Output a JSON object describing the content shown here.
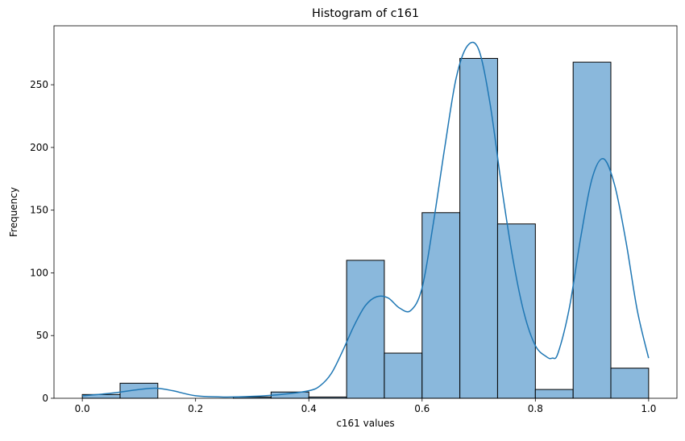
{
  "chart_data": {
    "type": "bar",
    "title": "Histogram of c161",
    "xlabel": "c161 values",
    "ylabel": "Frequency",
    "xlim": [
      -0.05,
      1.05
    ],
    "ylim": [
      0,
      297
    ],
    "x_ticks": [
      0.0,
      0.2,
      0.4,
      0.6,
      0.8,
      1.0
    ],
    "x_tick_labels": [
      "0.0",
      "0.2",
      "0.4",
      "0.6",
      "0.8",
      "1.0"
    ],
    "y_ticks": [
      0,
      50,
      100,
      150,
      200,
      250
    ],
    "y_tick_labels": [
      "0",
      "50",
      "100",
      "150",
      "200",
      "250"
    ],
    "bins": [
      {
        "start": 0.0,
        "end": 0.0667,
        "count": 3
      },
      {
        "start": 0.0667,
        "end": 0.1333,
        "count": 12
      },
      {
        "start": 0.1333,
        "end": 0.2,
        "count": 0
      },
      {
        "start": 0.2,
        "end": 0.2667,
        "count": 0
      },
      {
        "start": 0.2667,
        "end": 0.3333,
        "count": 1
      },
      {
        "start": 0.3333,
        "end": 0.4,
        "count": 5
      },
      {
        "start": 0.4,
        "end": 0.4667,
        "count": 1
      },
      {
        "start": 0.4667,
        "end": 0.5333,
        "count": 110
      },
      {
        "start": 0.5333,
        "end": 0.6,
        "count": 36
      },
      {
        "start": 0.6,
        "end": 0.6667,
        "count": 148
      },
      {
        "start": 0.6667,
        "end": 0.7333,
        "count": 271
      },
      {
        "start": 0.7333,
        "end": 0.8,
        "count": 139
      },
      {
        "start": 0.8,
        "end": 0.8667,
        "count": 7
      },
      {
        "start": 0.8667,
        "end": 0.9333,
        "count": 268
      },
      {
        "start": 0.9333,
        "end": 1.0,
        "count": 24
      }
    ],
    "kde": {
      "x": [
        0.0,
        0.05,
        0.1,
        0.13,
        0.16,
        0.2,
        0.25,
        0.3,
        0.35,
        0.4,
        0.42,
        0.44,
        0.46,
        0.48,
        0.5,
        0.52,
        0.54,
        0.56,
        0.58,
        0.6,
        0.62,
        0.64,
        0.66,
        0.68,
        0.7,
        0.72,
        0.74,
        0.76,
        0.78,
        0.8,
        0.82,
        0.83,
        0.84,
        0.86,
        0.88,
        0.9,
        0.92,
        0.94,
        0.96,
        0.98,
        1.0
      ],
      "y": [
        2,
        4,
        7,
        8,
        6,
        2,
        1,
        1.5,
        3,
        6,
        10,
        20,
        38,
        58,
        74,
        81,
        80,
        72,
        70,
        88,
        140,
        200,
        255,
        281,
        278,
        235,
        170,
        112,
        68,
        42,
        33,
        32,
        36,
        72,
        128,
        175,
        191,
        170,
        125,
        70,
        32
      ]
    },
    "bar_color": "#8ab8dc",
    "bar_edge_color": "#000000",
    "kde_color": "#1f77b4"
  }
}
